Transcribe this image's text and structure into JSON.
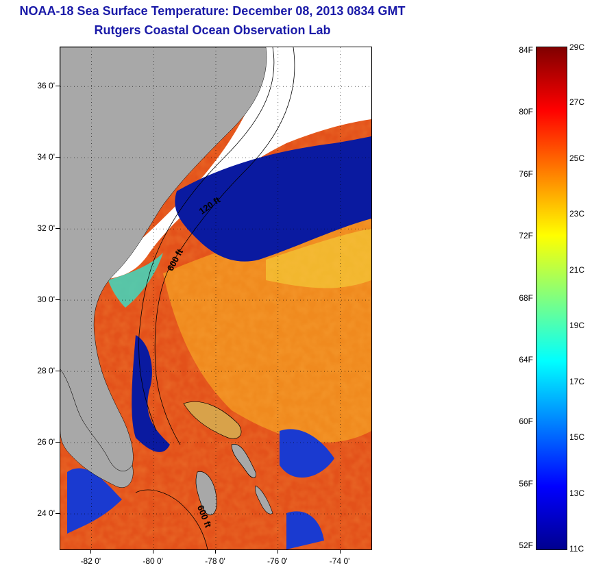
{
  "title": "NOAA-18 Sea Surface Temperature:  December 08, 2013 0834 GMT",
  "subtitle": "Rutgers Coastal Ocean Observation Lab",
  "lat_labels": [
    {
      "label": "36 0'",
      "lat": 36
    },
    {
      "label": "34 0'",
      "lat": 34
    },
    {
      "label": "32 0'",
      "lat": 32
    },
    {
      "label": "30 0'",
      "lat": 30
    },
    {
      "label": "28 0'",
      "lat": 28
    },
    {
      "label": "26 0'",
      "lat": 26
    },
    {
      "label": "24 0'",
      "lat": 24
    }
  ],
  "lon_labels": [
    {
      "label": "-82 0'",
      "lon": -82
    },
    {
      "label": "-80 0'",
      "lon": -80
    },
    {
      "label": "-78 0'",
      "lon": -78
    },
    {
      "label": "-76 0'",
      "lon": -76
    },
    {
      "label": "-74 0'",
      "lon": -74
    }
  ],
  "map_extent": {
    "lon_min": -83.0,
    "lon_max": -73.0,
    "lat_min": 23.0,
    "lat_max": 37.1
  },
  "contour_labels": [
    {
      "text": "120 ft",
      "lon": -78.45,
      "lat": 32.4,
      "rotate": -35
    },
    {
      "text": "600 ft",
      "lon": -79.4,
      "lat": 30.8,
      "rotate": -62
    },
    {
      "text": "600 ft",
      "lon": -78.6,
      "lat": 24.2,
      "rotate": 68
    }
  ],
  "colorbar": {
    "fahrenheit": [
      "84F",
      "80F",
      "76F",
      "72F",
      "68F",
      "64F",
      "60F",
      "56F",
      "52F"
    ],
    "f_values": [
      84,
      80,
      76,
      72,
      68,
      64,
      60,
      56,
      52
    ],
    "celsius": [
      "29C",
      "27C",
      "25C",
      "23C",
      "21C",
      "19C",
      "17C",
      "15C",
      "13C",
      "11C"
    ],
    "c_values": [
      29,
      27,
      25,
      23,
      21,
      19,
      17,
      15,
      13,
      11
    ],
    "c_min": 11,
    "c_max": 29,
    "stops": [
      "#00008f",
      "#0000ff",
      "#0080ff",
      "#00ffff",
      "#80ff80",
      "#ffff00",
      "#ff8000",
      "#ff0000",
      "#800000"
    ]
  },
  "colors": {
    "land": "#a8a8a8",
    "cloud": "#ffffff",
    "ocean_warm": "#e3511a",
    "ocean_orange": "#f08a1e",
    "cold": "#0a1aa0",
    "title": "#1a1aa8"
  }
}
